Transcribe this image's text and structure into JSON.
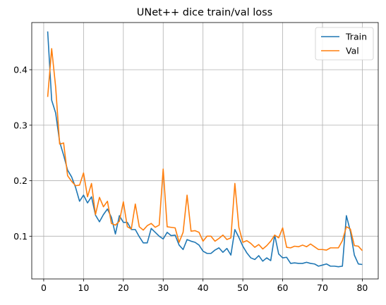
{
  "chart_data": {
    "type": "line",
    "title": "UNet++ dice train/val loss",
    "xlabel": "",
    "ylabel": "",
    "xlim": [
      -3,
      84
    ],
    "ylim": [
      0.023,
      0.485
    ],
    "x_ticks": [
      0,
      10,
      20,
      30,
      40,
      50,
      60,
      70,
      80
    ],
    "y_ticks": [
      0.1,
      0.2,
      0.3,
      0.4
    ],
    "grid": true,
    "legend_position": "top-right",
    "x": [
      1,
      2,
      3,
      4,
      5,
      6,
      7,
      8,
      9,
      10,
      11,
      12,
      13,
      14,
      15,
      16,
      17,
      18,
      19,
      20,
      21,
      22,
      23,
      24,
      25,
      26,
      27,
      28,
      29,
      30,
      31,
      32,
      33,
      34,
      35,
      36,
      37,
      38,
      39,
      40,
      41,
      42,
      43,
      44,
      45,
      46,
      47,
      48,
      49,
      50,
      51,
      52,
      53,
      54,
      55,
      56,
      57,
      58,
      59,
      60,
      61,
      62,
      63,
      64,
      65,
      66,
      67,
      68,
      69,
      70,
      71,
      72,
      73,
      74,
      75,
      76,
      77,
      78,
      79,
      80
    ],
    "series": [
      {
        "name": "Train",
        "color": "#1f77b4",
        "values": [
          0.469,
          0.345,
          0.322,
          0.27,
          0.246,
          0.219,
          0.207,
          0.188,
          0.163,
          0.174,
          0.16,
          0.171,
          0.138,
          0.126,
          0.139,
          0.149,
          0.134,
          0.104,
          0.137,
          0.125,
          0.125,
          0.112,
          0.112,
          0.099,
          0.088,
          0.088,
          0.114,
          0.107,
          0.1,
          0.095,
          0.107,
          0.101,
          0.102,
          0.084,
          0.076,
          0.094,
          0.091,
          0.089,
          0.084,
          0.073,
          0.069,
          0.069,
          0.075,
          0.079,
          0.071,
          0.078,
          0.066,
          0.112,
          0.098,
          0.082,
          0.07,
          0.061,
          0.058,
          0.065,
          0.055,
          0.061,
          0.056,
          0.102,
          0.068,
          0.061,
          0.062,
          0.051,
          0.052,
          0.051,
          0.051,
          0.053,
          0.051,
          0.05,
          0.046,
          0.048,
          0.05,
          0.046,
          0.046,
          0.045,
          0.046,
          0.137,
          0.109,
          0.066,
          0.05,
          0.049
        ]
      },
      {
        "name": "Val",
        "color": "#ff7f0e",
        "values": [
          0.351,
          0.438,
          0.369,
          0.266,
          0.268,
          0.209,
          0.199,
          0.191,
          0.192,
          0.214,
          0.171,
          0.195,
          0.139,
          0.17,
          0.153,
          0.163,
          0.123,
          0.12,
          0.127,
          0.162,
          0.117,
          0.113,
          0.158,
          0.117,
          0.111,
          0.119,
          0.123,
          0.116,
          0.12,
          0.221,
          0.117,
          0.116,
          0.115,
          0.089,
          0.107,
          0.174,
          0.109,
          0.11,
          0.107,
          0.091,
          0.1,
          0.1,
          0.091,
          0.096,
          0.102,
          0.094,
          0.097,
          0.195,
          0.116,
          0.089,
          0.092,
          0.087,
          0.08,
          0.085,
          0.077,
          0.083,
          0.091,
          0.102,
          0.097,
          0.115,
          0.08,
          0.079,
          0.082,
          0.081,
          0.084,
          0.081,
          0.086,
          0.081,
          0.076,
          0.076,
          0.075,
          0.079,
          0.079,
          0.079,
          0.092,
          0.117,
          0.113,
          0.083,
          0.082,
          0.074
        ]
      }
    ]
  }
}
